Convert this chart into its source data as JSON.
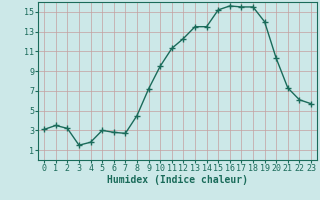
{
  "x": [
    0,
    1,
    2,
    3,
    4,
    5,
    6,
    7,
    8,
    9,
    10,
    11,
    12,
    13,
    14,
    15,
    16,
    17,
    18,
    19,
    20,
    21,
    22,
    23
  ],
  "y": [
    3.1,
    3.5,
    3.2,
    1.5,
    1.8,
    3.0,
    2.8,
    2.7,
    4.5,
    7.2,
    9.5,
    11.3,
    12.3,
    13.5,
    13.5,
    15.2,
    15.6,
    15.5,
    15.5,
    14.0,
    10.3,
    7.3,
    6.1,
    5.7
  ],
  "line_color": "#1a6b5a",
  "marker": "+",
  "marker_size": 4,
  "bg_color": "#cce8e8",
  "grid_color": "#b0d0d0",
  "xlabel": "Humidex (Indice chaleur)",
  "xlim": [
    -0.5,
    23.5
  ],
  "ylim": [
    0,
    16
  ],
  "yticks": [
    1,
    3,
    5,
    7,
    9,
    11,
    13,
    15
  ],
  "xtick_labels": [
    "0",
    "1",
    "2",
    "3",
    "4",
    "5",
    "6",
    "7",
    "8",
    "9",
    "10",
    "11",
    "12",
    "13",
    "14",
    "15",
    "16",
    "17",
    "18",
    "19",
    "20",
    "21",
    "22",
    "23"
  ],
  "xlabel_fontsize": 7,
  "tick_fontsize": 6,
  "line_width": 1.0
}
